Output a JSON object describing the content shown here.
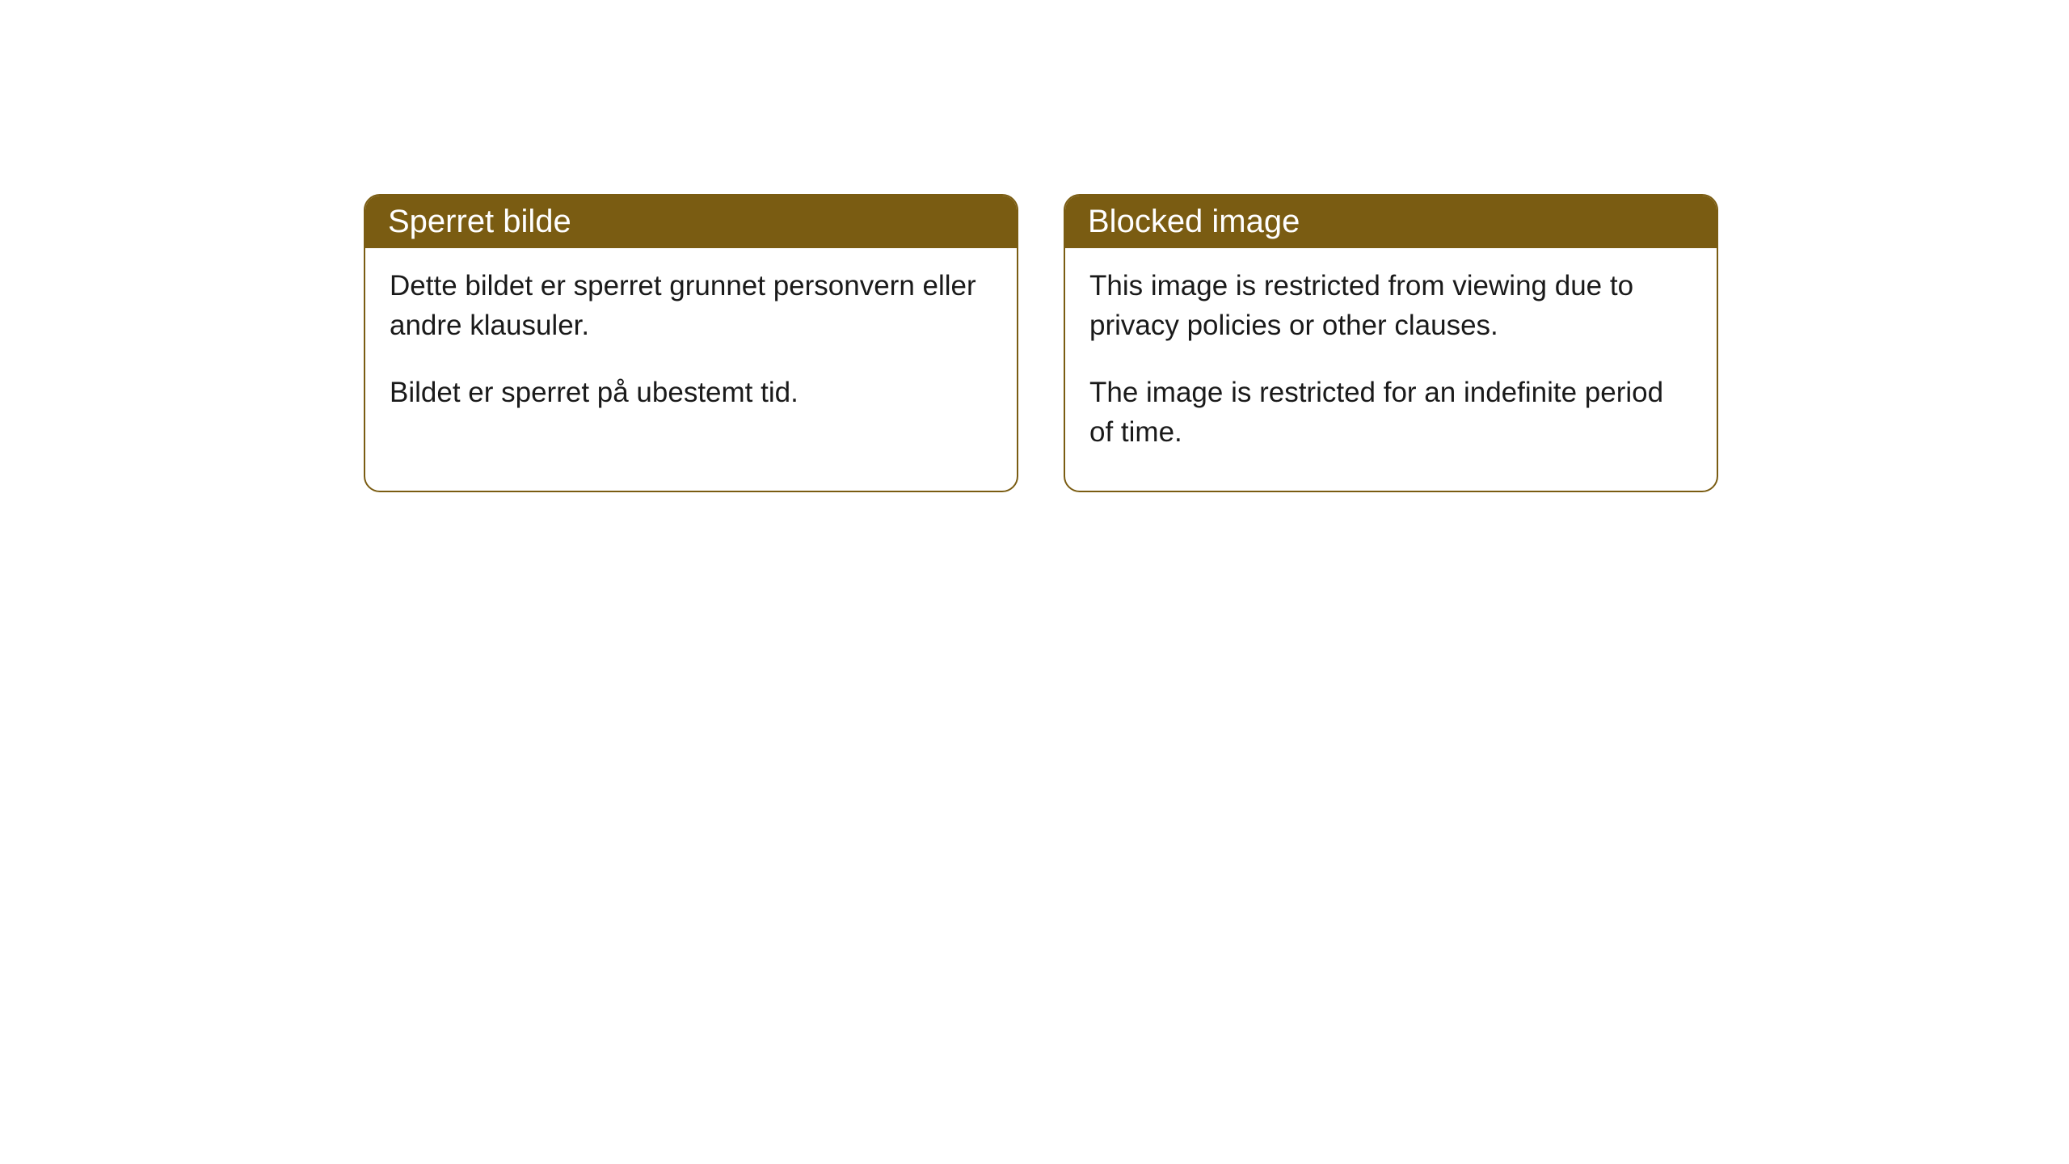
{
  "cards": [
    {
      "title": "Sperret bilde",
      "paragraph1": "Dette bildet er sperret grunnet personvern eller andre klausuler.",
      "paragraph2": "Bildet er sperret på ubestemt tid."
    },
    {
      "title": "Blocked image",
      "paragraph1": "This image is restricted from viewing due to privacy policies or other clauses.",
      "paragraph2": "The image is restricted for an indefinite period of time."
    }
  ],
  "styling": {
    "header_background": "#7a5c12",
    "header_text_color": "#ffffff",
    "border_color": "#7a5c12",
    "body_background": "#ffffff",
    "body_text_color": "#1a1a1a",
    "border_radius": 20,
    "header_fontsize": 40,
    "body_fontsize": 35
  }
}
